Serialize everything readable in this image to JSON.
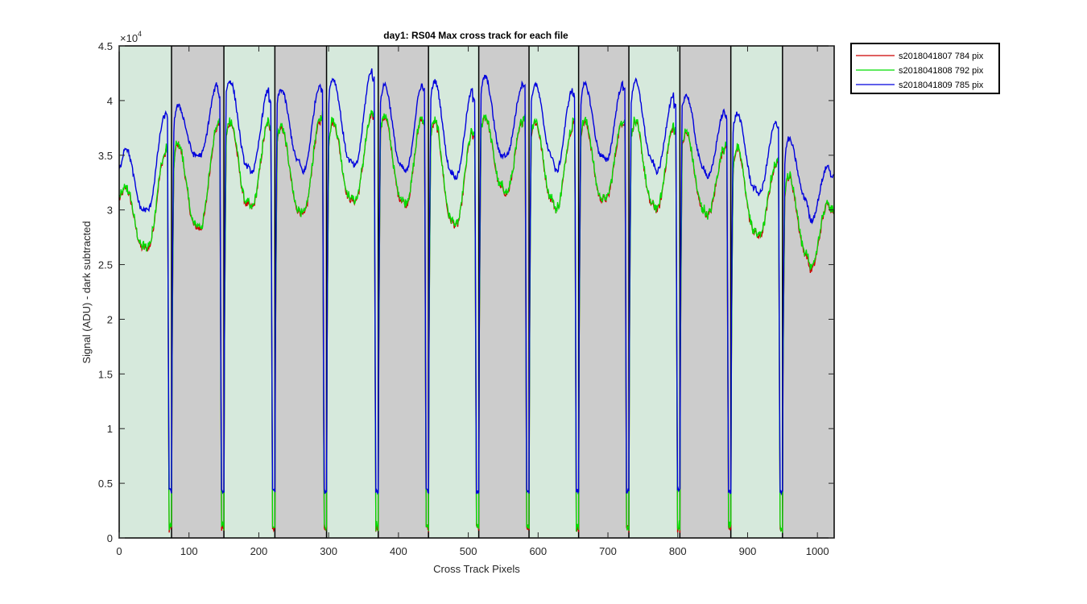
{
  "chart_data": {
    "type": "line",
    "title": "day1: RS04  Max cross track for each file",
    "xlabel": "Cross Track Pixels",
    "ylabel": "Signal (ADU) - dark subtracted",
    "y_exponent_label": "×10",
    "y_exponent_power": "4",
    "xlim": [
      0,
      1024
    ],
    "ylim": [
      0,
      45000
    ],
    "x_ticks": [
      0,
      100,
      200,
      300,
      400,
      500,
      600,
      700,
      800,
      900,
      1000
    ],
    "y_ticks": [
      0,
      5000,
      10000,
      15000,
      20000,
      25000,
      30000,
      35000,
      40000,
      45000
    ],
    "y_tick_labels": [
      "0",
      "0.5",
      "1",
      "1.5",
      "2",
      "2.5",
      "3",
      "3.5",
      "4",
      "4.5"
    ],
    "grid": false,
    "legend_position": "outside-top-right",
    "background_bands": [
      {
        "from": 0,
        "to": 75,
        "color": "#d6e9dc"
      },
      {
        "from": 75,
        "to": 150,
        "color": "#cccccc"
      },
      {
        "from": 150,
        "to": 223,
        "color": "#d6e9dc"
      },
      {
        "from": 223,
        "to": 297,
        "color": "#cccccc"
      },
      {
        "from": 297,
        "to": 371,
        "color": "#d6e9dc"
      },
      {
        "from": 371,
        "to": 443,
        "color": "#cccccc"
      },
      {
        "from": 443,
        "to": 515,
        "color": "#d6e9dc"
      },
      {
        "from": 515,
        "to": 587,
        "color": "#cccccc"
      },
      {
        "from": 587,
        "to": 658,
        "color": "#d6e9dc"
      },
      {
        "from": 658,
        "to": 730,
        "color": "#cccccc"
      },
      {
        "from": 730,
        "to": 803,
        "color": "#d6e9dc"
      },
      {
        "from": 803,
        "to": 876,
        "color": "#cccccc"
      },
      {
        "from": 876,
        "to": 950,
        "color": "#d6e9dc"
      },
      {
        "from": 950,
        "to": 1024,
        "color": "#cccccc"
      }
    ],
    "separators": [
      75,
      150,
      223,
      297,
      371,
      443,
      515,
      587,
      658,
      730,
      803,
      876,
      950
    ],
    "segments": [
      {
        "x0": 0,
        "x1": 75,
        "blue": [
          33800,
          35700,
          30000,
          30000,
          38600,
          38800
        ],
        "red": [
          31000,
          32000,
          26500,
          26500,
          35000,
          35500
        ]
      },
      {
        "x0": 75,
        "x1": 150,
        "blue": [
          37500,
          39500,
          35000,
          35000,
          41500,
          40500
        ],
        "red": [
          34000,
          36000,
          28500,
          28300,
          37500,
          38000
        ]
      },
      {
        "x0": 150,
        "x1": 223,
        "blue": [
          40500,
          41800,
          34000,
          33500,
          41000,
          40000
        ],
        "red": [
          36000,
          38000,
          30500,
          30200,
          38000,
          37500
        ]
      },
      {
        "x0": 223,
        "x1": 297,
        "blue": [
          39500,
          41000,
          34500,
          33500,
          41500,
          41000
        ],
        "red": [
          36000,
          37500,
          30000,
          29500,
          38000,
          38500
        ]
      },
      {
        "x0": 297,
        "x1": 371,
        "blue": [
          40000,
          42000,
          34500,
          34000,
          42800,
          42000
        ],
        "red": [
          36000,
          38000,
          31000,
          30800,
          38500,
          38500
        ]
      },
      {
        "x0": 371,
        "x1": 443,
        "blue": [
          39000,
          41500,
          34000,
          33500,
          41500,
          41000
        ],
        "red": [
          36500,
          38500,
          31000,
          30500,
          38500,
          38000
        ]
      },
      {
        "x0": 443,
        "x1": 515,
        "blue": [
          39500,
          41800,
          33500,
          33000,
          41000,
          40000
        ],
        "red": [
          36000,
          38000,
          29000,
          28500,
          37000,
          36500
        ]
      },
      {
        "x0": 515,
        "x1": 587,
        "blue": [
          40000,
          42200,
          35000,
          35000,
          41500,
          41500
        ],
        "red": [
          37000,
          38500,
          32000,
          31500,
          38000,
          38500
        ]
      },
      {
        "x0": 587,
        "x1": 658,
        "blue": [
          39000,
          41500,
          35000,
          33500,
          41000,
          40500
        ],
        "red": [
          36500,
          38000,
          31000,
          30000,
          37500,
          38000
        ]
      },
      {
        "x0": 658,
        "x1": 730,
        "blue": [
          39000,
          41500,
          35000,
          34500,
          41500,
          41000
        ],
        "red": [
          36500,
          38000,
          31000,
          31000,
          38000,
          38000
        ]
      },
      {
        "x0": 730,
        "x1": 803,
        "blue": [
          39000,
          41800,
          34500,
          33500,
          40500,
          39500
        ],
        "red": [
          36000,
          38000,
          30500,
          30000,
          37500,
          37000
        ]
      },
      {
        "x0": 803,
        "x1": 876,
        "blue": [
          39000,
          40500,
          34000,
          33000,
          39000,
          38500
        ],
        "red": [
          35000,
          37000,
          30000,
          29500,
          35500,
          36000
        ]
      },
      {
        "x0": 876,
        "x1": 950,
        "blue": [
          37000,
          38800,
          32000,
          31500,
          38000,
          37500
        ],
        "red": [
          33500,
          35500,
          28000,
          27500,
          34000,
          34500
        ]
      },
      {
        "x0": 950,
        "x1": 1024,
        "blue": [
          34000,
          36500,
          31000,
          29000,
          34000,
          33000
        ],
        "red": [
          31000,
          33000,
          26000,
          24500,
          30500,
          30000
        ]
      }
    ],
    "dip_values": {
      "blue_min": 4300,
      "red_min": 800,
      "green_min": 800
    },
    "series": [
      {
        "name": "s2018041807 784 pix",
        "color": "#cc0000"
      },
      {
        "name": "s2018041808 792 pix",
        "color": "#00dd00"
      },
      {
        "name": "s2018041809 785 pix",
        "color": "#0000dd"
      }
    ]
  }
}
